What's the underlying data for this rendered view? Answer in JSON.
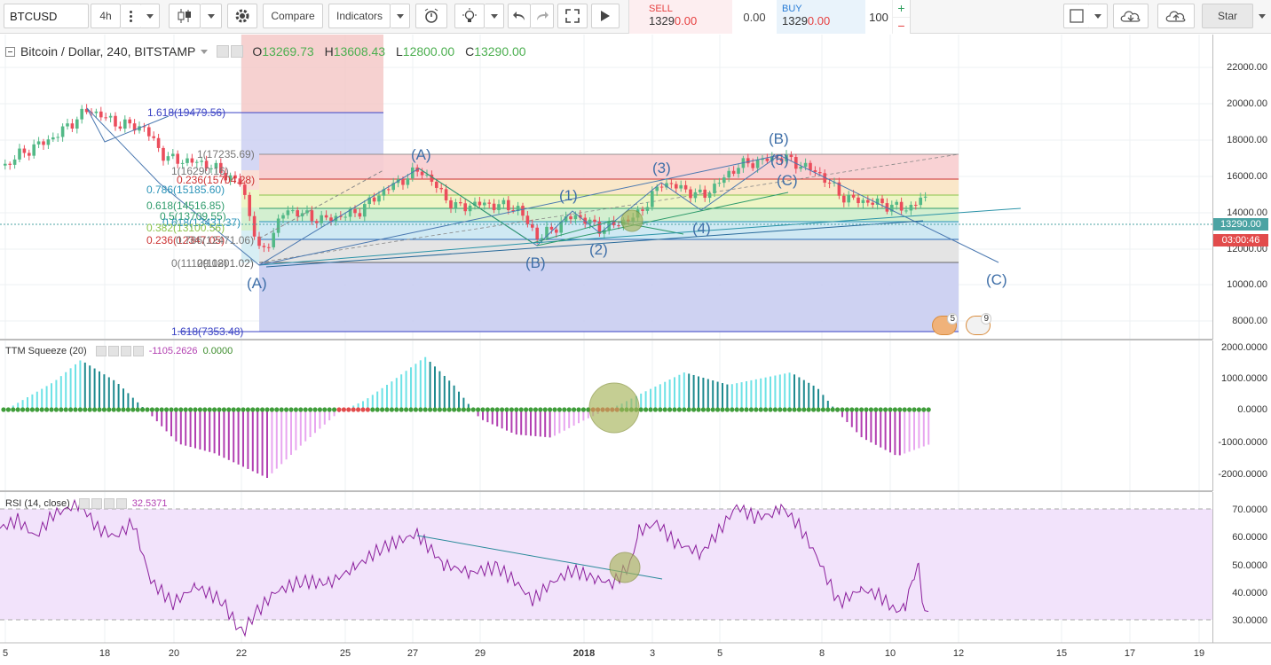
{
  "toolbar": {
    "symbol": "BTCUSD",
    "interval": "4h",
    "compare_label": "Compare",
    "indicators_label": "Indicators",
    "star_label": "Star"
  },
  "trade": {
    "sell_label": "SELL",
    "sell_price_a": "1329",
    "sell_price_b": "0.00",
    "spread": "0.00",
    "buy_label": "BUY",
    "buy_price_a": "1329",
    "buy_price_b": "0.00",
    "quantity": "100",
    "plus": "+",
    "minus": "−"
  },
  "main": {
    "title": "Bitcoin / Dollar, 240, BITSTAMP",
    "open_label": "O",
    "open": "13269.73",
    "high_label": "H",
    "high": "13608.43",
    "low_label": "L",
    "low": "12800.00",
    "close_label": "C",
    "close": "13290.00",
    "current_price": "13290.00",
    "countdown": "03:00:46",
    "price_ticks": [
      "22000.00",
      "20000.00",
      "18000.00",
      "16000.00",
      "14000.00",
      "12000.00",
      "10000.00",
      "8000.00"
    ],
    "fib_labels": [
      "1.618(19479.56)",
      "1(17235.69)",
      "1(16290.16)",
      "0.236(15704.28)",
      "0.786(15185.60)",
      "0.618(14516.85)",
      "0.5(13709.55)",
      "0.618(13431.37)",
      "0.382(13100.56)",
      "0.236(12347.05)",
      "0.786(12471.06)",
      "0(11129.08)",
      "0(11201.02)",
      "1.618(7353.48)"
    ],
    "wave_labels": [
      "(A)",
      "(A)",
      "(1)",
      "(B)",
      "(2)",
      "(3)",
      "(4)",
      "(B)",
      "(5)",
      "(C)",
      "(C)"
    ],
    "event_badges": [
      "5",
      "9"
    ]
  },
  "ttm": {
    "name": "TTM Squeeze (20)",
    "value1": "-1105.2626",
    "value2": "0.0000",
    "ticks": [
      "2000.0000",
      "1000.0000",
      "0.0000",
      "-1000.0000",
      "-2000.0000"
    ]
  },
  "rsi": {
    "name": "RSI (14, close)",
    "value": "32.5371",
    "ticks": [
      "70.0000",
      "60.0000",
      "50.0000",
      "40.0000",
      "30.0000"
    ]
  },
  "time_axis": [
    "5",
    "18",
    "20",
    "22",
    "25",
    "27",
    "29",
    "2018",
    "3",
    "5",
    "8",
    "10",
    "12",
    "15",
    "17",
    "19"
  ],
  "colors": {
    "up": "#53b987",
    "down": "#eb4d5c",
    "fib_red": "#f4c6c4",
    "fib_blue": "#c9cdf1",
    "rsi_band": "#f2e3fb",
    "rsi_line": "#8b1f9c",
    "price_tag": "#4ba3a3"
  },
  "icons": [
    "candles-icon",
    "settings-icon",
    "alert-icon",
    "bulb-icon",
    "undo-icon",
    "redo-icon",
    "fullscreen-icon",
    "play-icon",
    "cloud-load-icon",
    "cloud-save-icon"
  ]
}
